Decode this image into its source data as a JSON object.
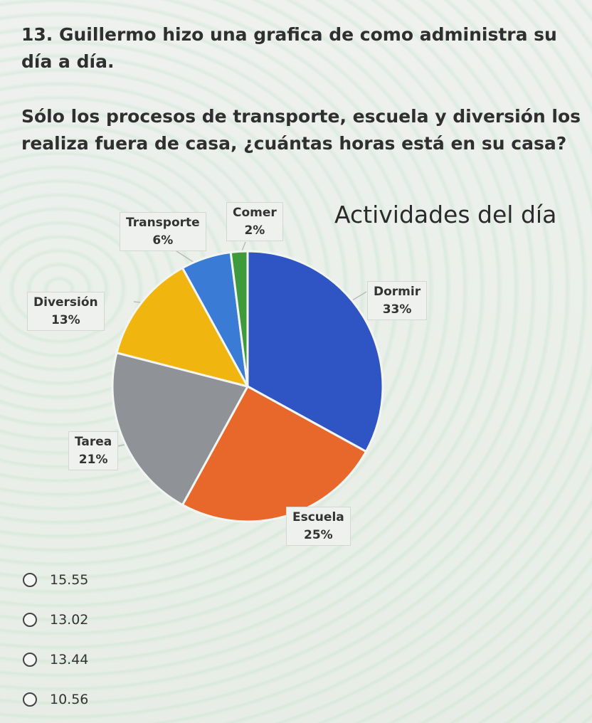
{
  "question": {
    "line1": "13. Guillermo hizo una grafica de como administra su día a día.",
    "line2": "Sólo los procesos de transporte, escuela y diversión los realiza fuera de casa, ¿cuántas horas está en su casa?"
  },
  "chart_data": {
    "type": "pie",
    "title": "Actividades del día",
    "slices": [
      {
        "name": "Dormir",
        "value": 33,
        "label": "33%",
        "color": "#2f55c4"
      },
      {
        "name": "Escuela",
        "value": 25,
        "label": "25%",
        "color": "#e8682c"
      },
      {
        "name": "Tarea",
        "value": 21,
        "label": "21%",
        "color": "#8f9296"
      },
      {
        "name": "Diversión",
        "value": 13,
        "label": "13%",
        "color": "#f0b50e"
      },
      {
        "name": "Transporte",
        "value": 6,
        "label": "6%",
        "color": "#3a7bd5"
      },
      {
        "name": "Comer",
        "value": 2,
        "label": "2%",
        "color": "#3f9a3c"
      }
    ],
    "legend": "none"
  },
  "options": [
    "15.55",
    "13.02",
    "13.44",
    "10.56"
  ]
}
